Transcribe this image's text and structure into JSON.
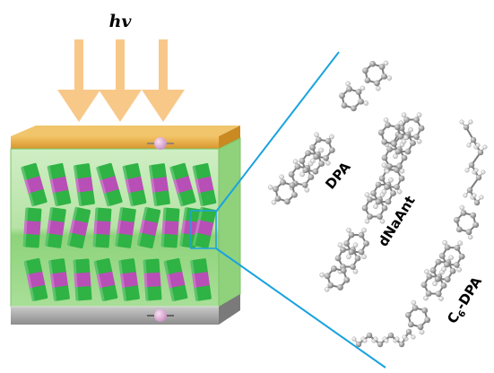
{
  "light_label": "hv",
  "molecules": [
    {
      "name": "DPA"
    },
    {
      "name": "dNaAnt"
    },
    {
      "name": "C6-DPA",
      "prefix": "C",
      "subscript": "6",
      "suffix": "-DPA"
    }
  ],
  "colors": {
    "arrow": "#f8c889",
    "top_electrode": "#e6ad47",
    "bottom_electrode": "#a8a8a8",
    "film": "#9fd88d",
    "molecule_green": "#2fb344",
    "molecule_magenta": "#b84fb6",
    "zoom_lines": "#1aa3df"
  },
  "layers": [
    "top-electrode",
    "organic-crystal-layer",
    "bottom-electrode"
  ]
}
